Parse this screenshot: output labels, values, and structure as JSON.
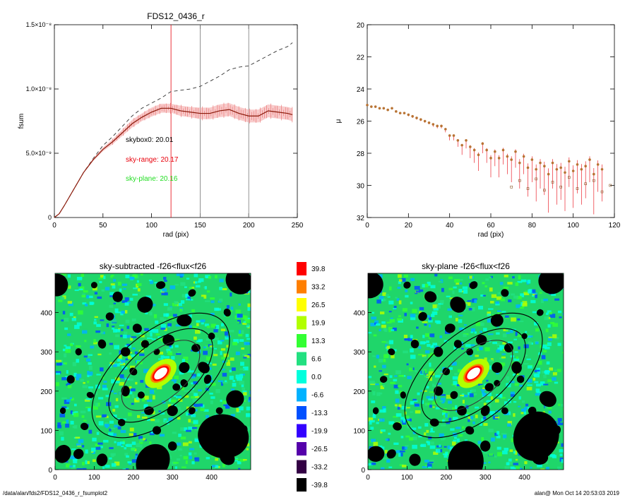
{
  "footer": {
    "left": "/data/alan/fds2/FDS12_0436_r_fsumplot2",
    "right": "alan@  Mon Oct 14 20:53:03 2019"
  },
  "chart_data": [
    {
      "type": "line",
      "title": "FDS12_0436_r",
      "xlabel": "rad (pix)",
      "ylabel": "fsum",
      "xlim": [
        0,
        250
      ],
      "ylim": [
        0,
        1.5e-08
      ],
      "xticks": [
        "0",
        "50",
        "100",
        "150",
        "200",
        "250"
      ],
      "yticks": [
        {
          "value": 0,
          "label": "0"
        },
        {
          "value": 5e-09,
          "label": "5.0×10⁻⁹"
        },
        {
          "value": 1e-08,
          "label": "1.0×10⁻⁸"
        },
        {
          "value": 1.5e-08,
          "label": "1.5×10⁻⁸"
        }
      ],
      "vlines": [
        {
          "x": 120,
          "color": "#e8000b"
        },
        {
          "x": 150,
          "color": "#777777"
        },
        {
          "x": 200,
          "color": "#777777"
        }
      ],
      "annotations": [
        {
          "text": "skybox0: 20.01",
          "color": "#000000"
        },
        {
          "text": "sky-range: 20.17",
          "color": "#e8000b"
        },
        {
          "text": "sky-plane: 20.16",
          "color": "#22dd22"
        }
      ],
      "series": [
        {
          "style": "dashed",
          "color": "#333333",
          "x": [
            0,
            5,
            10,
            20,
            30,
            40,
            50,
            60,
            70,
            80,
            90,
            100,
            110,
            120,
            130,
            140,
            150,
            160,
            170,
            180,
            190,
            200,
            210,
            220,
            230,
            240,
            245
          ],
          "y": [
            0,
            3e-10,
            9e-10,
            2.2e-09,
            3.5e-09,
            4.6e-09,
            5.6e-09,
            6.3e-09,
            7.1e-09,
            7.9e-09,
            8.5e-09,
            8.9e-09,
            9.3e-09,
            9.8e-09,
            9.9e-09,
            1e-08,
            1.02e-08,
            1.06e-08,
            1.1e-08,
            1.15e-08,
            1.17e-08,
            1.18e-08,
            1.22e-08,
            1.26e-08,
            1.3e-08,
            1.33e-08,
            1.36e-08
          ]
        },
        {
          "style": "errorband",
          "color": "#8b1a0a",
          "band": "#f2a0a0",
          "x": [
            0,
            5,
            10,
            20,
            30,
            40,
            50,
            60,
            70,
            80,
            90,
            100,
            110,
            120,
            130,
            140,
            150,
            160,
            170,
            180,
            190,
            200,
            210,
            220,
            230,
            240,
            245
          ],
          "y": [
            0,
            3e-10,
            9e-10,
            2.2e-09,
            3.5e-09,
            4.5e-09,
            5.3e-09,
            5.9e-09,
            6.6e-09,
            7.3e-09,
            7.8e-09,
            8.2e-09,
            8.5e-09,
            8.5e-09,
            8.3e-09,
            8.2e-09,
            8.1e-09,
            8.1e-09,
            8.3e-09,
            8.4e-09,
            8.1e-09,
            7.9e-09,
            7.9e-09,
            8.3e-09,
            8.2e-09,
            8.1e-09,
            8e-09
          ],
          "err": [
            0,
            0,
            0,
            0,
            5e-11,
            1e-10,
            1.5e-10,
            2e-10,
            2.5e-10,
            3e-10,
            3e-10,
            3.5e-10,
            3.5e-10,
            3.5e-10,
            4e-10,
            4e-10,
            4.5e-10,
            4.5e-10,
            5e-10,
            5e-10,
            5e-10,
            5e-10,
            5e-10,
            5e-10,
            5e-10,
            5e-10,
            5e-10
          ]
        }
      ]
    },
    {
      "type": "scatter",
      "xlabel": "rad (pix)",
      "ylabel": "μ",
      "xlim": [
        0,
        120
      ],
      "ylim": [
        32,
        20
      ],
      "xticks": [
        "0",
        "20",
        "40",
        "60",
        "80",
        "100",
        "120"
      ],
      "yticks": [
        "20",
        "22",
        "24",
        "26",
        "28",
        "30",
        "32"
      ],
      "series": [
        {
          "style": "markers",
          "color": "#b87333",
          "errcolor": "#e8000b",
          "x": [
            0,
            2,
            4,
            6,
            8,
            10,
            12,
            14,
            16,
            18,
            20,
            22,
            24,
            26,
            28,
            30,
            32,
            34,
            36,
            38,
            40,
            42,
            44,
            46,
            48,
            50,
            52,
            54,
            56,
            58,
            60,
            62,
            64,
            66,
            68,
            70,
            72,
            74,
            76,
            78,
            80,
            82,
            84,
            86,
            88,
            90,
            92,
            94,
            96,
            98,
            100,
            102,
            104,
            106,
            108,
            110,
            112,
            114
          ],
          "y": [
            25.0,
            25.1,
            25.1,
            25.2,
            25.2,
            25.3,
            25.2,
            25.4,
            25.5,
            25.5,
            25.6,
            25.7,
            25.8,
            25.9,
            26.0,
            26.1,
            26.2,
            26.3,
            26.3,
            26.5,
            26.9,
            26.9,
            27.2,
            27.5,
            27.2,
            27.6,
            27.8,
            28.1,
            27.4,
            27.8,
            28.3,
            27.9,
            28.3,
            27.8,
            28.2,
            28.4,
            27.9,
            28.6,
            28.2,
            28.9,
            28.4,
            29.0,
            28.6,
            28.8,
            29.3,
            28.6,
            29.0,
            28.9,
            29.2,
            28.5,
            29.1,
            28.7,
            29.0,
            28.8,
            28.4,
            29.3,
            28.7,
            29.0
          ],
          "err": [
            0.05,
            0.05,
            0.05,
            0.05,
            0.05,
            0.05,
            0.05,
            0.05,
            0.05,
            0.05,
            0.1,
            0.1,
            0.1,
            0.1,
            0.1,
            0.1,
            0.15,
            0.15,
            0.15,
            0.2,
            0.3,
            0.3,
            0.4,
            0.6,
            0.5,
            0.7,
            0.8,
            1.0,
            0.6,
            0.8,
            1.2,
            0.9,
            1.2,
            0.9,
            1.1,
            1.4,
            1.0,
            1.6,
            1.1,
            1.8,
            1.4,
            2.0,
            1.6,
            1.8,
            2.4,
            1.6,
            2.2,
            2.0,
            2.4,
            1.6,
            2.3,
            1.8,
            2.2,
            2.0,
            1.4,
            2.5,
            1.7,
            2.0
          ]
        },
        {
          "style": "open-squares",
          "color": "#8b5a2b",
          "x": [
            70,
            74,
            78,
            82,
            86,
            90,
            94,
            98,
            102,
            106,
            110,
            114,
            118
          ],
          "y": [
            30.1,
            29.7,
            30.2,
            29.6,
            30.3,
            29.8,
            30.1,
            29.5,
            30.2,
            29.9,
            29.7,
            30.4,
            30.0
          ]
        }
      ]
    },
    {
      "type": "heatmap",
      "title": "sky-subtracted -f26<flux<f26",
      "xlim": [
        0,
        500
      ],
      "ylim": [
        0,
        500
      ],
      "xticks": [
        "0",
        "100",
        "200",
        "300",
        "400"
      ],
      "yticks": [
        "0",
        "100",
        "200",
        "300",
        "400"
      ],
      "ellipse": {
        "cx": 270,
        "cy": 240,
        "a_inner": 120,
        "b_inner": 60,
        "a_mid": 160,
        "b_mid": 80,
        "a_outer": 210,
        "b_outer": 110,
        "pa_deg": 40
      }
    },
    {
      "type": "heatmap",
      "title": "sky-plane -f26<flux<f26",
      "xlim": [
        0,
        500
      ],
      "ylim": [
        0,
        500
      ],
      "xticks": [
        "0",
        "100",
        "200",
        "300",
        "400"
      ],
      "yticks": [
        "0",
        "100",
        "200",
        "300",
        "400"
      ],
      "ellipse": {
        "cx": 270,
        "cy": 240,
        "a_inner": 120,
        "b_inner": 60,
        "a_mid": 160,
        "b_mid": 80,
        "a_outer": 210,
        "b_outer": 110,
        "pa_deg": 40
      }
    }
  ],
  "colorbar": {
    "labels": [
      "39.8",
      "33.2",
      "26.5",
      "19.9",
      "13.3",
      "6.6",
      "0.0",
      "-6.6",
      "-13.3",
      "-19.9",
      "-26.5",
      "-33.2",
      "-39.8"
    ],
    "colors": [
      "#ff0000",
      "#ff7f00",
      "#ffff00",
      "#b2ff00",
      "#33ff33",
      "#22e080",
      "#00ffdd",
      "#00b2ff",
      "#0050ff",
      "#3300ff",
      "#5500aa",
      "#330044",
      "#000000"
    ]
  }
}
